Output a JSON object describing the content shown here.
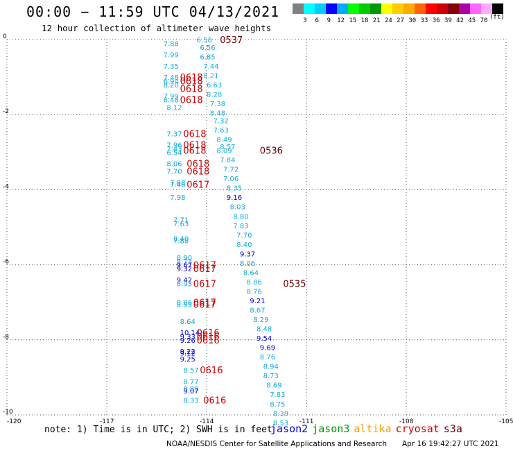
{
  "title": "00:00 − 11:59 UTC 04/13/2021",
  "subtitle": "12 hour collection of altimeter wave heights",
  "scale": {
    "colors": [
      "#808080",
      "#00ffff",
      "#00ccff",
      "#0000ff",
      "#00aaff",
      "#00ff00",
      "#00cc00",
      "#009900",
      "#ffff00",
      "#ffcc00",
      "#ffaa00",
      "#ff6600",
      "#ff0000",
      "#cc0000",
      "#880000",
      "#aa00aa",
      "#ff66ff",
      "#ffaaff",
      "#000000"
    ],
    "labels": [
      "3",
      "6",
      "9",
      "12",
      "15",
      "18",
      "21",
      "24",
      "27",
      "30",
      "33",
      "36",
      "39",
      "42",
      "45",
      "70"
    ],
    "unit": "(ft)"
  },
  "colors": {
    "jason2": "#0000cc",
    "jason3": "#009900",
    "altika": "#ff9900",
    "cryosat": "#cc0000",
    "s3a": "#660000",
    "obs_light": "#11aadd"
  },
  "note": "note:  1) Time is in UTC;  2) SWH is in feet",
  "legend": [
    {
      "name": "jason2",
      "color": "#0000cc"
    },
    {
      "name": "jason3",
      "color": "#009900"
    },
    {
      "name": "altika",
      "color": "#ff9900"
    },
    {
      "name": "cryosat",
      "color": "#cc0000"
    },
    {
      "name": "s3a",
      "color": "#660000"
    }
  ],
  "credit": "NOAA/NESDIS Center for Satellite Applications and Research",
  "stamp": "Apr 16 19:42:27 UTC 2021",
  "chart_data": {
    "type": "scatter",
    "xlim": [
      -120,
      -105
    ],
    "ylim": [
      -10,
      0
    ],
    "x_ticks": [
      "-120",
      "-117",
      "-114",
      "-111",
      "-108",
      "-105"
    ],
    "y_ticks": [
      "0",
      "-2",
      "-4",
      "-6",
      "-8",
      "-10"
    ],
    "grid": true,
    "tracks": [
      {
        "lon": -115.3,
        "lat": -0.1,
        "label": "7.88",
        "kind": "light"
      },
      {
        "lon": -115.3,
        "lat": -0.4,
        "label": "7.99",
        "kind": "light"
      },
      {
        "lon": -115.3,
        "lat": -0.7,
        "label": "7.35",
        "kind": "light"
      },
      {
        "lon": -115.3,
        "lat": -1.0,
        "label": "7.48",
        "kind": "light"
      },
      {
        "lon": -115.3,
        "lat": -1.1,
        "label": "6.94",
        "kind": "light"
      },
      {
        "lon": -115.3,
        "lat": -1.2,
        "label": "8.20",
        "kind": "light"
      },
      {
        "lon": -115.3,
        "lat": -1.5,
        "label": "7.99",
        "kind": "light"
      },
      {
        "lon": -115.3,
        "lat": -1.6,
        "label": "6.48",
        "kind": "light"
      },
      {
        "lon": -115.2,
        "lat": -1.8,
        "label": "8.12",
        "kind": "light"
      },
      {
        "lon": -115.2,
        "lat": -2.5,
        "label": "7.37",
        "kind": "light"
      },
      {
        "lon": -115.2,
        "lat": -2.8,
        "label": "7.96",
        "kind": "light"
      },
      {
        "lon": -115.2,
        "lat": -2.9,
        "label": "7.43",
        "kind": "light"
      },
      {
        "lon": -115.2,
        "lat": -3.0,
        "label": "6.54",
        "kind": "light"
      },
      {
        "lon": -115.2,
        "lat": -3.3,
        "label": "8.06",
        "kind": "light"
      },
      {
        "lon": -115.2,
        "lat": -3.5,
        "label": "7.70",
        "kind": "light"
      },
      {
        "lon": -115.1,
        "lat": -3.8,
        "label": "7.88",
        "kind": "light"
      },
      {
        "lon": -115.1,
        "lat": -3.85,
        "label": "7.46",
        "kind": "light"
      },
      {
        "lon": -115.1,
        "lat": -4.2,
        "label": "7.98",
        "kind": "light"
      },
      {
        "lon": -115.0,
        "lat": -4.8,
        "label": "7.71",
        "kind": "light"
      },
      {
        "lon": -115.0,
        "lat": -4.9,
        "label": "7.63",
        "kind": "light"
      },
      {
        "lon": -115.0,
        "lat": -5.3,
        "label": "8.40",
        "kind": "light"
      },
      {
        "lon": -115.0,
        "lat": -5.35,
        "label": "7.88",
        "kind": "light"
      },
      {
        "lon": -114.9,
        "lat": -5.8,
        "label": "8.90",
        "kind": "light"
      },
      {
        "lon": -114.9,
        "lat": -5.9,
        "label": "8.73",
        "kind": "light"
      },
      {
        "lon": -114.9,
        "lat": -6.0,
        "label": "9.67",
        "kind": "dark"
      },
      {
        "lon": -114.9,
        "lat": -6.1,
        "label": "9.32",
        "kind": "dark"
      },
      {
        "lon": -114.9,
        "lat": -6.4,
        "label": "9.42",
        "kind": "dark"
      },
      {
        "lon": -114.9,
        "lat": -6.5,
        "label": "8.93",
        "kind": "light"
      },
      {
        "lon": -114.9,
        "lat": -7.0,
        "label": "8.86",
        "kind": "light"
      },
      {
        "lon": -114.9,
        "lat": -7.05,
        "label": "8.55",
        "kind": "light"
      },
      {
        "lon": -114.8,
        "lat": -7.5,
        "label": "8.64",
        "kind": "light"
      },
      {
        "lon": -114.8,
        "lat": -7.8,
        "label": "10.14",
        "kind": "dark"
      },
      {
        "lon": -114.8,
        "lat": -7.9,
        "label": "9.33",
        "kind": "dark"
      },
      {
        "lon": -114.8,
        "lat": -8.0,
        "label": "9.26",
        "kind": "dark"
      },
      {
        "lon": -114.8,
        "lat": -8.3,
        "label": "9.22",
        "kind": "dark"
      },
      {
        "lon": -114.8,
        "lat": -8.35,
        "label": "9.12",
        "kind": "dark"
      },
      {
        "lon": -114.8,
        "lat": -8.5,
        "label": "9.25",
        "kind": "dark"
      },
      {
        "lon": -114.7,
        "lat": -8.8,
        "label": "8.57",
        "kind": "light"
      },
      {
        "lon": -114.7,
        "lat": -9.1,
        "label": "8.77",
        "kind": "light"
      },
      {
        "lon": -114.7,
        "lat": -9.3,
        "label": "8.89",
        "kind": "light"
      },
      {
        "lon": -114.7,
        "lat": -9.35,
        "label": "9.07",
        "kind": "dark"
      },
      {
        "lon": -114.7,
        "lat": -9.6,
        "label": "8.33",
        "kind": "light"
      },
      {
        "lon": -114.3,
        "lat": 0.0,
        "label": "6.58",
        "kind": "light"
      },
      {
        "lon": -114.2,
        "lat": -0.2,
        "label": "6.56",
        "kind": "light"
      },
      {
        "lon": -114.2,
        "lat": -0.45,
        "label": "6.85",
        "kind": "light"
      },
      {
        "lon": -114.1,
        "lat": -0.7,
        "label": "7.44",
        "kind": "light"
      },
      {
        "lon": -114.1,
        "lat": -0.95,
        "label": "8.21",
        "kind": "light"
      },
      {
        "lon": -114.0,
        "lat": -1.2,
        "label": "6.63",
        "kind": "light"
      },
      {
        "lon": -114.0,
        "lat": -1.45,
        "label": "8.28",
        "kind": "light"
      },
      {
        "lon": -113.9,
        "lat": -1.7,
        "label": "7.38",
        "kind": "light"
      },
      {
        "lon": -113.9,
        "lat": -1.95,
        "label": "8.48",
        "kind": "light"
      },
      {
        "lon": -113.8,
        "lat": -2.15,
        "label": "7.32",
        "kind": "light"
      },
      {
        "lon": -113.8,
        "lat": -2.4,
        "label": "7.63",
        "kind": "light"
      },
      {
        "lon": -113.7,
        "lat": -2.65,
        "label": "8.49",
        "kind": "light"
      },
      {
        "lon": -113.6,
        "lat": -2.85,
        "label": "8.57",
        "kind": "light"
      },
      {
        "lon": -113.7,
        "lat": -2.95,
        "label": "8.09",
        "kind": "light"
      },
      {
        "lon": -113.6,
        "lat": -3.2,
        "label": "7.84",
        "kind": "light"
      },
      {
        "lon": -113.5,
        "lat": -3.45,
        "label": "7.72",
        "kind": "light"
      },
      {
        "lon": -113.5,
        "lat": -3.7,
        "label": "7.06",
        "kind": "light"
      },
      {
        "lon": -113.4,
        "lat": -3.95,
        "label": "8.35",
        "kind": "light"
      },
      {
        "lon": -113.4,
        "lat": -4.2,
        "label": "9.16",
        "kind": "dark"
      },
      {
        "lon": -113.3,
        "lat": -4.45,
        "label": "8.03",
        "kind": "light"
      },
      {
        "lon": -113.2,
        "lat": -4.7,
        "label": "8.80",
        "kind": "light"
      },
      {
        "lon": -113.2,
        "lat": -4.95,
        "label": "7.83",
        "kind": "light"
      },
      {
        "lon": -113.1,
        "lat": -5.2,
        "label": "7.70",
        "kind": "light"
      },
      {
        "lon": -113.1,
        "lat": -5.45,
        "label": "8.40",
        "kind": "light"
      },
      {
        "lon": -113.0,
        "lat": -5.7,
        "label": "9.37",
        "kind": "dark"
      },
      {
        "lon": -113.0,
        "lat": -5.95,
        "label": "8.06",
        "kind": "light"
      },
      {
        "lon": -112.9,
        "lat": -6.2,
        "label": "8.64",
        "kind": "light"
      },
      {
        "lon": -112.8,
        "lat": -6.45,
        "label": "8.86",
        "kind": "light"
      },
      {
        "lon": -112.8,
        "lat": -6.7,
        "label": "8.76",
        "kind": "light"
      },
      {
        "lon": -112.7,
        "lat": -6.95,
        "label": "9.21",
        "kind": "dark"
      },
      {
        "lon": -112.7,
        "lat": -7.2,
        "label": "8.67",
        "kind": "light"
      },
      {
        "lon": -112.6,
        "lat": -7.45,
        "label": "8.29",
        "kind": "light"
      },
      {
        "lon": -112.5,
        "lat": -7.7,
        "label": "8.48",
        "kind": "light"
      },
      {
        "lon": -112.5,
        "lat": -7.95,
        "label": "9.54",
        "kind": "dark"
      },
      {
        "lon": -112.4,
        "lat": -8.2,
        "label": "9.69",
        "kind": "dark"
      },
      {
        "lon": -112.4,
        "lat": -8.45,
        "label": "8.76",
        "kind": "light"
      },
      {
        "lon": -112.3,
        "lat": -8.7,
        "label": "8.94",
        "kind": "light"
      },
      {
        "lon": -112.3,
        "lat": -8.95,
        "label": "8.73",
        "kind": "light"
      },
      {
        "lon": -112.2,
        "lat": -9.2,
        "label": "8.69",
        "kind": "light"
      },
      {
        "lon": -112.1,
        "lat": -9.45,
        "label": "7.83",
        "kind": "light"
      },
      {
        "lon": -112.1,
        "lat": -9.7,
        "label": "8.75",
        "kind": "light"
      },
      {
        "lon": -112.0,
        "lat": -9.95,
        "label": "8.39",
        "kind": "light"
      },
      {
        "lon": -112.0,
        "lat": -10.2,
        "label": "8.53",
        "kind": "light"
      }
    ],
    "cycles": [
      {
        "lon": -113.6,
        "lat": 0.0,
        "label": "0537",
        "sat": "s3a"
      },
      {
        "lon": -114.8,
        "lat": -1.0,
        "label": "0618",
        "sat": "cryosat"
      },
      {
        "lon": -114.8,
        "lat": -1.1,
        "label": "0618",
        "sat": "cryosat"
      },
      {
        "lon": -114.8,
        "lat": -1.3,
        "label": "0618",
        "sat": "cryosat"
      },
      {
        "lon": -114.8,
        "lat": -1.6,
        "label": "0618",
        "sat": "cryosat"
      },
      {
        "lon": -114.7,
        "lat": -2.5,
        "label": "0618",
        "sat": "cryosat"
      },
      {
        "lon": -114.7,
        "lat": -2.8,
        "label": "0618",
        "sat": "cryosat"
      },
      {
        "lon": -114.7,
        "lat": -2.95,
        "label": "0618",
        "sat": "cryosat"
      },
      {
        "lon": -112.4,
        "lat": -2.95,
        "label": "0536",
        "sat": "s3a"
      },
      {
        "lon": -114.6,
        "lat": -3.3,
        "label": "0618",
        "sat": "cryosat"
      },
      {
        "lon": -114.6,
        "lat": -3.5,
        "label": "0618",
        "sat": "cryosat"
      },
      {
        "lon": -114.6,
        "lat": -3.85,
        "label": "0617",
        "sat": "cryosat"
      },
      {
        "lon": -114.4,
        "lat": -6.0,
        "label": "0617",
        "sat": "cryosat"
      },
      {
        "lon": -114.4,
        "lat": -6.1,
        "label": "0617",
        "sat": "cryosat"
      },
      {
        "lon": -114.4,
        "lat": -6.5,
        "label": "0617",
        "sat": "cryosat"
      },
      {
        "lon": -111.7,
        "lat": -6.5,
        "label": "0535",
        "sat": "s3a"
      },
      {
        "lon": -114.4,
        "lat": -7.0,
        "label": "0617",
        "sat": "cryosat"
      },
      {
        "lon": -114.4,
        "lat": -7.05,
        "label": "0617",
        "sat": "cryosat"
      },
      {
        "lon": -114.3,
        "lat": -7.8,
        "label": "0616",
        "sat": "cryosat"
      },
      {
        "lon": -114.3,
        "lat": -7.9,
        "label": "0616",
        "sat": "cryosat"
      },
      {
        "lon": -114.3,
        "lat": -8.0,
        "label": "0616",
        "sat": "cryosat"
      },
      {
        "lon": -114.2,
        "lat": -8.8,
        "label": "0616",
        "sat": "cryosat"
      },
      {
        "lon": -114.1,
        "lat": -9.6,
        "label": "0616",
        "sat": "cryosat"
      }
    ]
  }
}
